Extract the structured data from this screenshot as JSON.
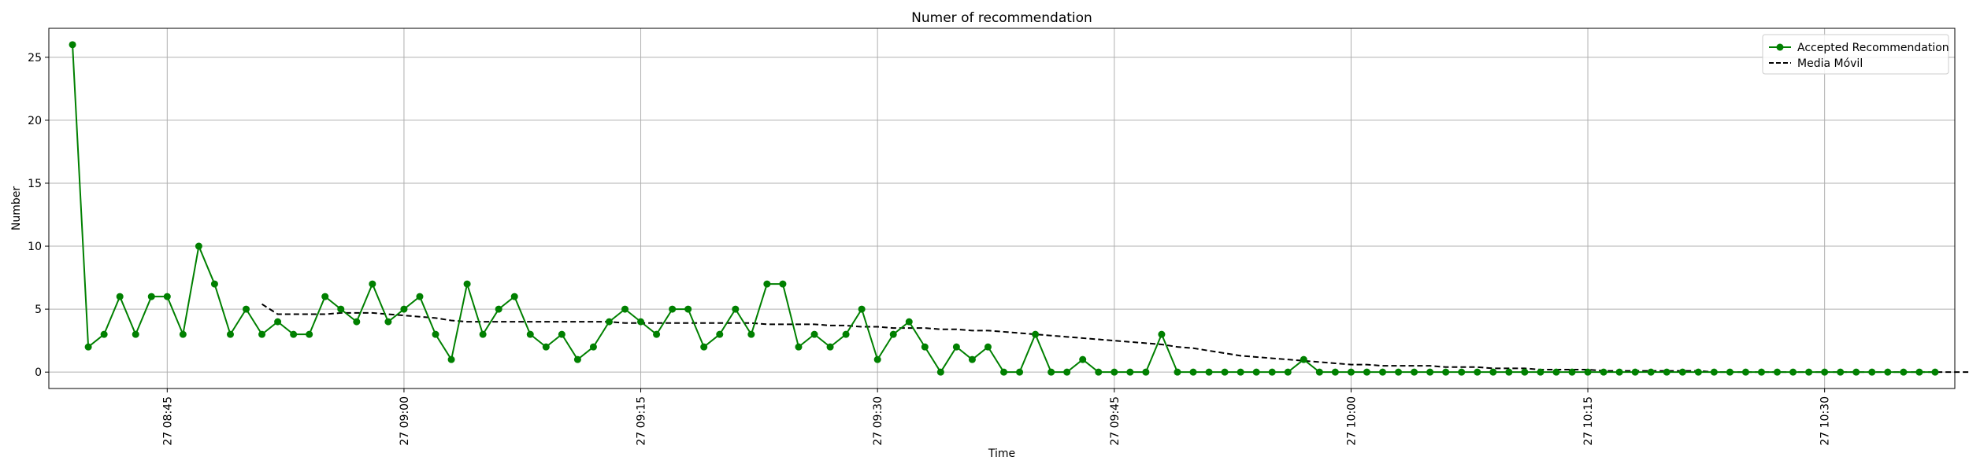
{
  "chart_data": {
    "type": "line",
    "title": "Numer of recommendation",
    "xlabel": "Time",
    "ylabel": "Number",
    "ylim": [
      -1.3,
      27.3
    ],
    "xlim": [
      "2024-01-27 08:37:30",
      "2024-01-27 10:38:15"
    ],
    "grid": true,
    "legend_position": "top-right",
    "y_ticks": [
      0,
      5,
      10,
      15,
      20,
      25
    ],
    "x_ticks": [
      {
        "time": "2024-01-27 08:45",
        "label": "27 08:45"
      },
      {
        "time": "2024-01-27 09:00",
        "label": "27 09:00"
      },
      {
        "time": "2024-01-27 09:15",
        "label": "27 09:15"
      },
      {
        "time": "2024-01-27 09:30",
        "label": "27 09:30"
      },
      {
        "time": "2024-01-27 09:45",
        "label": "27 09:45"
      },
      {
        "time": "2024-01-27 10:00",
        "label": "27 10:00"
      },
      {
        "time": "2024-01-27 10:15",
        "label": "27 10:15"
      },
      {
        "time": "2024-01-27 10:30",
        "label": "27 10:30"
      }
    ],
    "x_start": "2024-01-27 08:39",
    "x_step_minutes": 1,
    "series": [
      {
        "name": "Accepted Recommendation",
        "color": "#008000",
        "style": "solid-with-circle-markers",
        "values": [
          26,
          2,
          3,
          6,
          3,
          6,
          6,
          3,
          10,
          7,
          3,
          5,
          3,
          4,
          3,
          3,
          6,
          5,
          4,
          7,
          4,
          5,
          6,
          3,
          1,
          7,
          3,
          5,
          6,
          3,
          2,
          3,
          1,
          2,
          4,
          5,
          4,
          3,
          5,
          5,
          2,
          3,
          5,
          3,
          7,
          7,
          2,
          3,
          2,
          3,
          5,
          1,
          3,
          4,
          2,
          0,
          2,
          1,
          2,
          0,
          0,
          3,
          0,
          0,
          1,
          0,
          0,
          0,
          0,
          3,
          0,
          0,
          0,
          0,
          0,
          0,
          0,
          0,
          1,
          0,
          0,
          0,
          0,
          0,
          0,
          0,
          0,
          0,
          0,
          0,
          0,
          0,
          0,
          0,
          0,
          0,
          0,
          0,
          0,
          0,
          0,
          0,
          0,
          0,
          0,
          0,
          0,
          0,
          0,
          0,
          0,
          0,
          0,
          0,
          0,
          0,
          0,
          0,
          0
        ]
      },
      {
        "name": "Media Móvil",
        "color": "#000000",
        "style": "dashed",
        "start_index": 12,
        "values": [
          5.4,
          4.6,
          4.6,
          4.6,
          4.6,
          4.7,
          4.7,
          4.7,
          4.6,
          4.5,
          4.4,
          4.3,
          4.1,
          4.0,
          4.0,
          4.0,
          4.0,
          4.0,
          4.0,
          4.0,
          4.0,
          4.0,
          4.0,
          3.9,
          3.9,
          3.9,
          3.9,
          3.9,
          3.9,
          3.9,
          3.9,
          3.9,
          3.8,
          3.8,
          3.8,
          3.8,
          3.7,
          3.7,
          3.6,
          3.6,
          3.5,
          3.5,
          3.5,
          3.4,
          3.4,
          3.3,
          3.3,
          3.2,
          3.1,
          3.0,
          2.9,
          2.8,
          2.7,
          2.6,
          2.5,
          2.4,
          2.3,
          2.2,
          2.0,
          1.9,
          1.7,
          1.5,
          1.3,
          1.2,
          1.1,
          1.0,
          0.9,
          0.8,
          0.7,
          0.6,
          0.6,
          0.5,
          0.5,
          0.5,
          0.5,
          0.4,
          0.4,
          0.4,
          0.3,
          0.3,
          0.3,
          0.2,
          0.2,
          0.2,
          0.2,
          0.1,
          0.1,
          0.1,
          0.1,
          0.1,
          0.1,
          0.1,
          0.0,
          0.0,
          0.0,
          0.0,
          0.0,
          0.0,
          0.0,
          0.0,
          0.0,
          0.0,
          0.0,
          0.0,
          0.0,
          0.0,
          0.0,
          0.0,
          0.0,
          0.0,
          0.0,
          0.0,
          0.0,
          0.0,
          0.0,
          0.0,
          0.0,
          0.0,
          0.0,
          0.0,
          0.0
        ]
      }
    ]
  }
}
